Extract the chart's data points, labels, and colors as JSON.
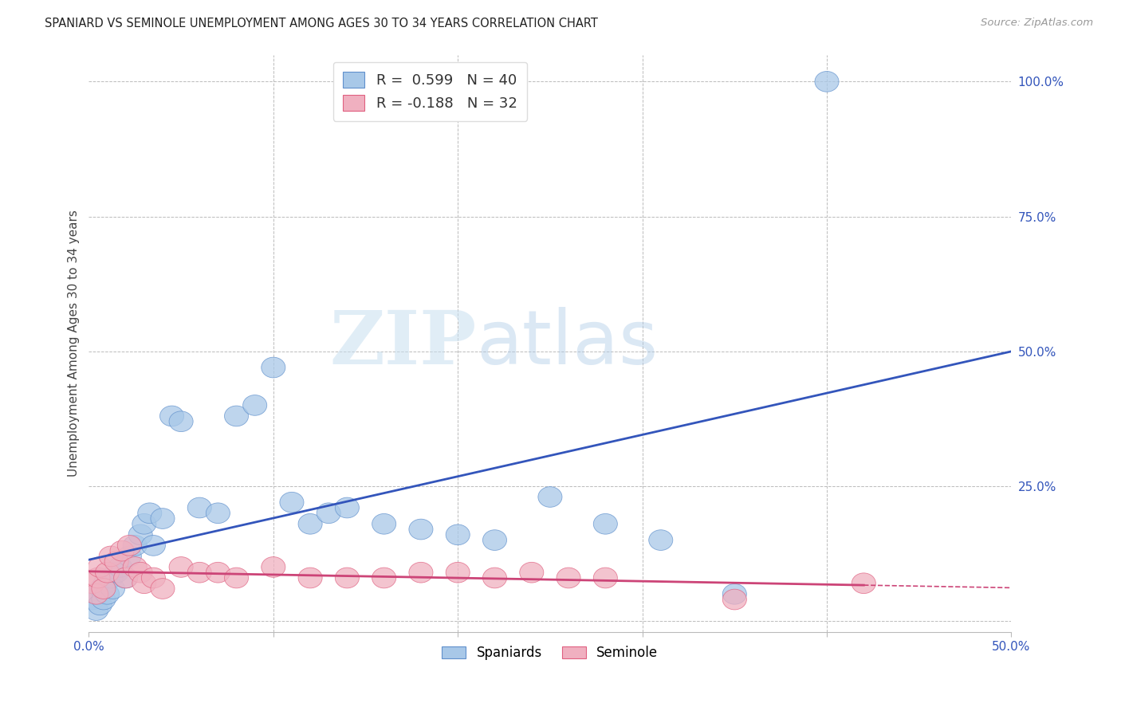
{
  "title": "SPANIARD VS SEMINOLE UNEMPLOYMENT AMONG AGES 30 TO 34 YEARS CORRELATION CHART",
  "source": "Source: ZipAtlas.com",
  "ylabel": "Unemployment Among Ages 30 to 34 years",
  "xlim": [
    0.0,
    0.5
  ],
  "ylim": [
    -0.02,
    1.05
  ],
  "watermark_zip": "ZIP",
  "watermark_atlas": "atlas",
  "blue_R": 0.599,
  "blue_N": 40,
  "pink_R": -0.188,
  "pink_N": 32,
  "blue_color": "#A8C8E8",
  "pink_color": "#F0B0C0",
  "blue_edge_color": "#6090CC",
  "pink_edge_color": "#E06080",
  "blue_line_color": "#3355BB",
  "pink_line_color": "#CC4477",
  "spaniards_x": [
    0.002,
    0.004,
    0.005,
    0.006,
    0.007,
    0.008,
    0.009,
    0.01,
    0.012,
    0.013,
    0.015,
    0.017,
    0.02,
    0.022,
    0.025,
    0.028,
    0.03,
    0.033,
    0.035,
    0.04,
    0.045,
    0.05,
    0.06,
    0.07,
    0.08,
    0.09,
    0.1,
    0.11,
    0.12,
    0.13,
    0.14,
    0.16,
    0.18,
    0.2,
    0.22,
    0.25,
    0.28,
    0.31,
    0.35,
    0.4
  ],
  "spaniards_y": [
    0.04,
    0.02,
    0.05,
    0.03,
    0.06,
    0.04,
    0.07,
    0.05,
    0.08,
    0.06,
    0.09,
    0.1,
    0.08,
    0.12,
    0.14,
    0.16,
    0.18,
    0.2,
    0.14,
    0.19,
    0.38,
    0.37,
    0.21,
    0.2,
    0.38,
    0.4,
    0.47,
    0.22,
    0.18,
    0.2,
    0.21,
    0.18,
    0.17,
    0.16,
    0.15,
    0.23,
    0.18,
    0.15,
    0.05,
    1.0
  ],
  "seminole_x": [
    0.002,
    0.004,
    0.005,
    0.006,
    0.008,
    0.01,
    0.012,
    0.015,
    0.018,
    0.02,
    0.022,
    0.025,
    0.028,
    0.03,
    0.035,
    0.04,
    0.05,
    0.06,
    0.07,
    0.08,
    0.1,
    0.12,
    0.14,
    0.16,
    0.18,
    0.2,
    0.22,
    0.24,
    0.26,
    0.28,
    0.35,
    0.42
  ],
  "seminole_y": [
    0.07,
    0.05,
    0.08,
    0.1,
    0.06,
    0.09,
    0.12,
    0.11,
    0.13,
    0.08,
    0.14,
    0.1,
    0.09,
    0.07,
    0.08,
    0.06,
    0.1,
    0.09,
    0.09,
    0.08,
    0.1,
    0.08,
    0.08,
    0.08,
    0.09,
    0.09,
    0.08,
    0.09,
    0.08,
    0.08,
    0.04,
    0.07
  ],
  "background_color": "#FFFFFF",
  "grid_color": "#BBBBBB"
}
